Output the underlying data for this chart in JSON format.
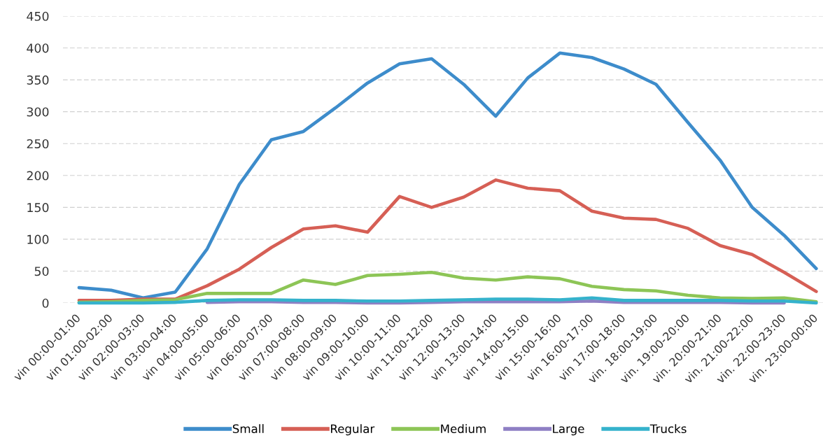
{
  "chart_data": {
    "type": "line",
    "categories": [
      "vin 00:00-01:00",
      "vin 01:00-02:00",
      "vin 02:00-03:00",
      "vin 03:00-04:00",
      "vin 04:00-05:00",
      "vin 05:00-06:00",
      "vin 06:00-07:00",
      "vin 07:00-08:00",
      "vin 08:00-09:00",
      "vin 09:00-10:00",
      "vin 10:00-11:00",
      "vin 11:00-12:00",
      "vin 12:00-13:00",
      "vin 13:00-14:00",
      "vin 14:00-15:00",
      "vin 15:00-16:00",
      "vin 16:00-17:00",
      "vin 17:00-18:00",
      "vin. 18:00-19:00",
      "vin. 19:00-20:00",
      "vin. 20:00-21:00",
      "vin. 21:00-22:00",
      "vin. 22:00-23:00",
      "vin. 23:00-00:00"
    ],
    "series": [
      {
        "name": "Small",
        "color": "#3d8ccb",
        "values": [
          24,
          20,
          8,
          17,
          85,
          186,
          256,
          269,
          306,
          345,
          375,
          383,
          343,
          293,
          353,
          392,
          385,
          367,
          343,
          283,
          224,
          150,
          106,
          54
        ]
      },
      {
        "name": "Regular",
        "color": "#d65f55",
        "values": [
          4,
          4,
          6,
          6,
          27,
          53,
          87,
          116,
          121,
          111,
          167,
          150,
          166,
          193,
          180,
          176,
          144,
          133,
          131,
          117,
          90,
          76,
          48,
          18
        ]
      },
      {
        "name": "Medium",
        "color": "#8dc556",
        "values": [
          1,
          2,
          4,
          5,
          15,
          15,
          15,
          36,
          29,
          43,
          45,
          48,
          39,
          36,
          41,
          38,
          26,
          21,
          19,
          12,
          8,
          7,
          8,
          2
        ]
      },
      {
        "name": "Large",
        "color": "#8e7fc4",
        "values": [
          null,
          null,
          null,
          null,
          1,
          2,
          2,
          1,
          1,
          0,
          0,
          1,
          2,
          2,
          2,
          2,
          3,
          1,
          1,
          1,
          1,
          0,
          0,
          null
        ]
      },
      {
        "name": "Trucks",
        "color": "#35b2cc",
        "values": [
          0,
          0,
          0,
          1,
          4,
          5,
          5,
          4,
          4,
          3,
          3,
          4,
          5,
          6,
          6,
          5,
          8,
          4,
          4,
          4,
          4,
          3,
          3,
          0
        ]
      }
    ],
    "ylim": [
      0,
      450
    ],
    "yticks": [
      0,
      50,
      100,
      150,
      200,
      250,
      300,
      350,
      400,
      450
    ],
    "grid": "y",
    "legend": "bottom"
  }
}
